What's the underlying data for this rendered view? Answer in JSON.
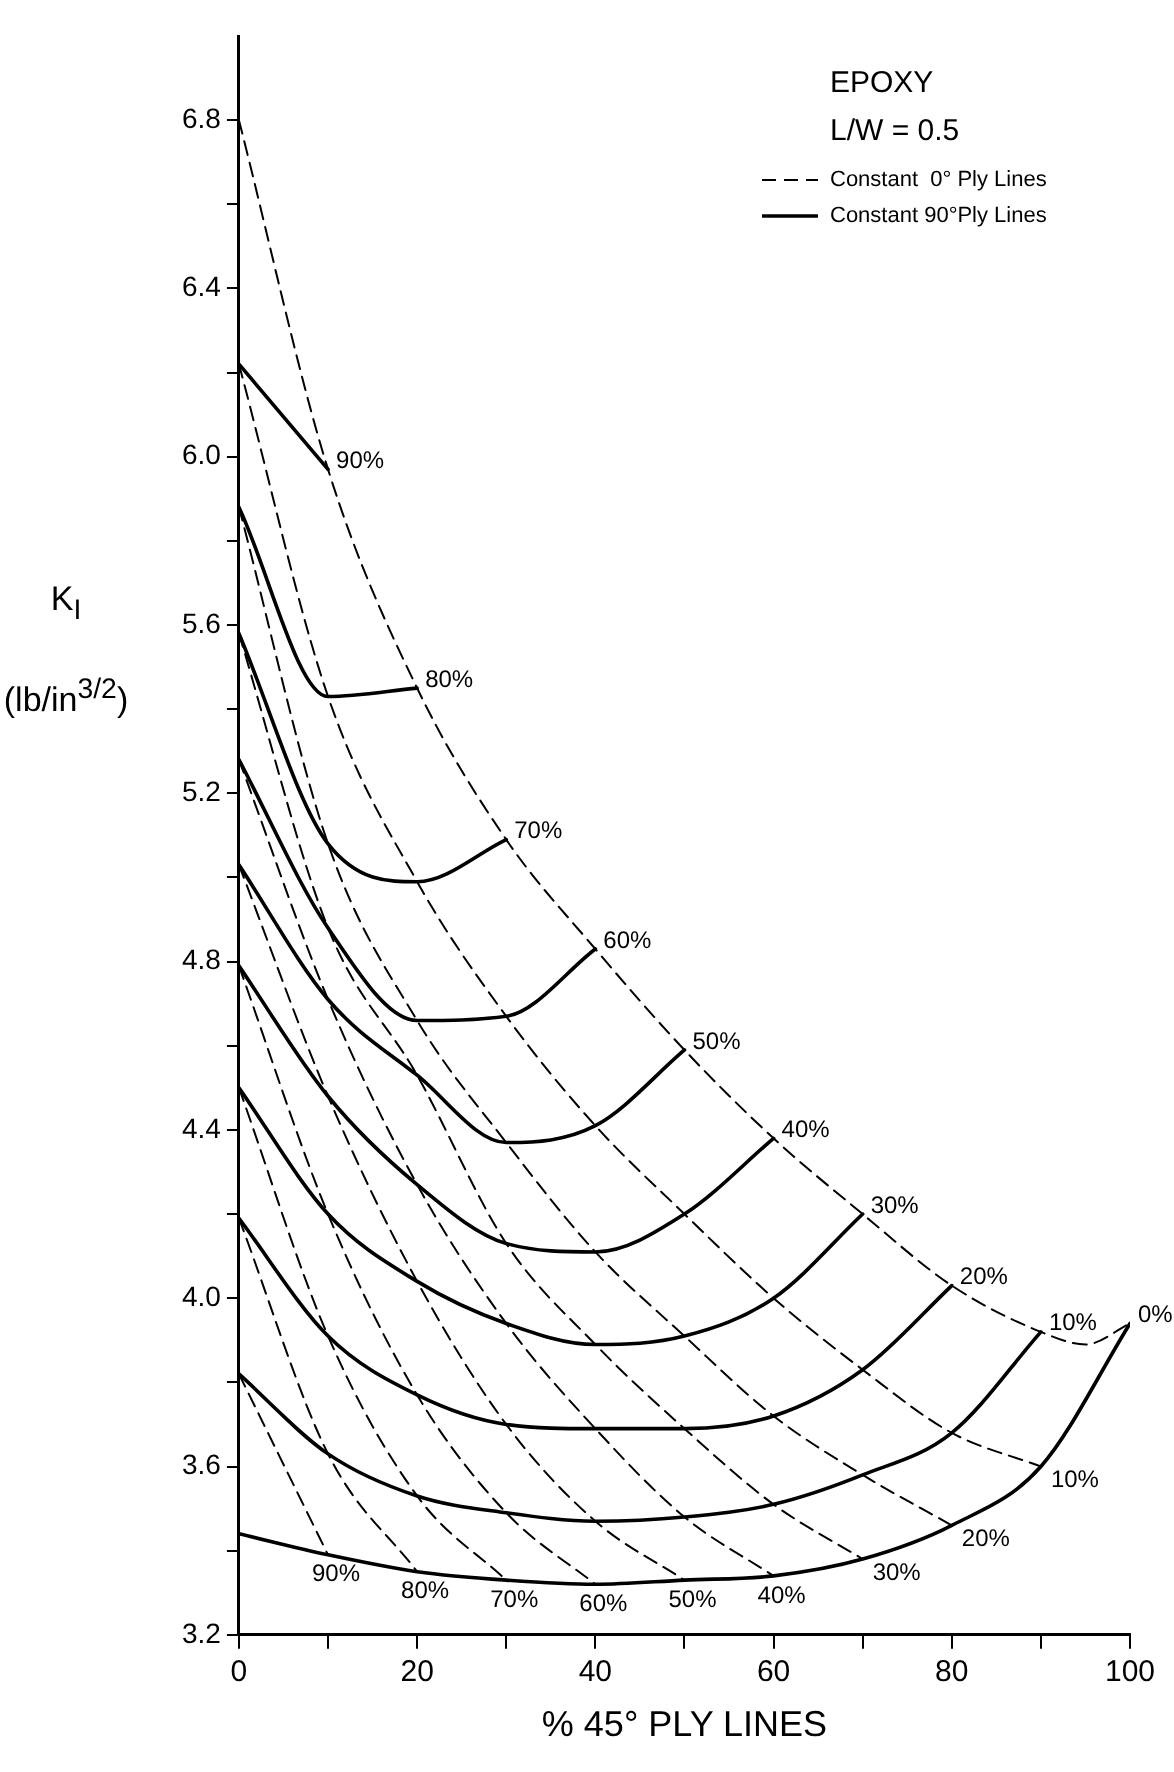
{
  "chart_data": {
    "type": "line",
    "xlabel": "% 45° PLY LINES",
    "ylabel": "K$_{I}$ (lb/in$^{3/2}$)",
    "annotations": [
      "EPOXY",
      "L/W = 0.5",
      "Constant  0° Ply Lines",
      "Constant 90°Ply Lines"
    ],
    "xlim": [
      0,
      100
    ],
    "xticks": [
      0,
      {
        "value": 10,
        "label": null
      },
      20,
      {
        "value": 30,
        "label": null
      },
      40,
      {
        "value": 50,
        "label": null
      },
      60,
      {
        "value": 70,
        "label": null
      },
      80,
      {
        "value": 90,
        "label": null
      },
      100
    ],
    "ylim": [
      3.2,
      7.0
    ],
    "yticks": [
      3.2,
      {
        "value": 3.4,
        "label": null
      },
      3.6,
      {
        "value": 3.8,
        "label": null
      },
      {
        "value": 4.0,
        "label": "4.0"
      },
      {
        "value": 4.2,
        "label": null
      },
      4.4,
      {
        "value": 4.6,
        "label": null
      },
      4.8,
      {
        "value": 5.0,
        "label": null
      },
      5.2,
      {
        "value": 5.4,
        "label": null
      },
      5.6,
      {
        "value": 5.8,
        "label": null
      },
      {
        "value": 6.0,
        "label": "6.0"
      },
      {
        "value": 6.2,
        "label": null
      },
      6.4,
      {
        "value": 6.6,
        "label": null
      },
      6.8
    ],
    "series": [
      {
        "name": "90%",
        "color": "#000000",
        "line_style": "solid",
        "x": [
          0,
          10
        ],
        "values": [
          6.22,
          5.97
        ]
      },
      {
        "name": "80%",
        "color": "#000000",
        "line_style": "solid",
        "x": [
          0,
          10,
          20
        ],
        "values": [
          5.88,
          5.43,
          5.45
        ]
      },
      {
        "name": "70%",
        "color": "#000000",
        "line_style": "solid",
        "x": [
          0,
          10,
          20,
          30
        ],
        "values": [
          5.58,
          5.08,
          4.99,
          5.09
        ]
      },
      {
        "name": "60%",
        "color": "#000000",
        "line_style": "solid",
        "x": [
          0,
          10,
          20,
          30,
          40
        ],
        "values": [
          5.28,
          4.88,
          4.66,
          4.67,
          4.83
        ]
      },
      {
        "name": "50%",
        "color": "#000000",
        "line_style": "solid",
        "x": [
          0,
          10,
          20,
          30,
          40,
          50
        ],
        "values": [
          5.03,
          4.71,
          4.53,
          4.37,
          4.41,
          4.59
        ]
      },
      {
        "name": "40%",
        "color": "#000000",
        "line_style": "solid",
        "x": [
          0,
          10,
          20,
          30,
          40,
          50,
          60
        ],
        "values": [
          4.79,
          4.48,
          4.27,
          4.13,
          4.11,
          4.2,
          4.38
        ]
      },
      {
        "name": "30%",
        "color": "#000000",
        "line_style": "solid",
        "x": [
          0,
          10,
          20,
          30,
          40,
          50,
          60,
          70
        ],
        "values": [
          4.5,
          4.2,
          4.04,
          3.94,
          3.89,
          3.91,
          4.0,
          4.2
        ]
      },
      {
        "name": "20%",
        "color": "#000000",
        "line_style": "solid",
        "x": [
          0,
          10,
          20,
          30,
          40,
          50,
          60,
          70,
          80
        ],
        "values": [
          4.19,
          3.91,
          3.77,
          3.7,
          3.69,
          3.69,
          3.72,
          3.83,
          4.03
        ]
      },
      {
        "name": "10%",
        "color": "#000000",
        "line_style": "solid",
        "x": [
          0,
          10,
          20,
          30,
          40,
          50,
          60,
          70,
          80,
          90
        ],
        "values": [
          3.82,
          3.63,
          3.53,
          3.49,
          3.47,
          3.48,
          3.51,
          3.58,
          3.68,
          3.92
        ]
      },
      {
        "name": "0%",
        "color": "#000000",
        "line_style": "solid",
        "x": [
          0,
          10,
          20,
          30,
          40,
          50,
          60,
          70,
          80,
          90,
          100
        ],
        "values": [
          3.44,
          3.39,
          3.35,
          3.33,
          3.32,
          3.33,
          3.34,
          3.38,
          3.46,
          3.6,
          3.94
        ]
      },
      {
        "color": "#000000",
        "line_style": "dashed",
        "x": [
          0,
          10,
          20,
          30,
          40,
          50,
          60,
          70,
          80,
          90,
          95,
          100
        ],
        "values": [
          6.8,
          5.97,
          5.45,
          5.09,
          4.83,
          4.59,
          4.38,
          4.2,
          4.03,
          3.92,
          3.89,
          3.94
        ]
      },
      {
        "name": "10%",
        "color": "#000000",
        "line_style": "dashed",
        "x": [
          0,
          10,
          20,
          30,
          40,
          50,
          60,
          70,
          80,
          90
        ],
        "values": [
          6.22,
          5.43,
          4.99,
          4.67,
          4.41,
          4.2,
          4.0,
          3.83,
          3.68,
          3.6
        ]
      },
      {
        "name": "20%",
        "color": "#000000",
        "line_style": "dashed",
        "x": [
          0,
          10,
          20,
          30,
          40,
          50,
          60,
          70,
          80
        ],
        "values": [
          5.88,
          5.08,
          4.66,
          4.37,
          4.11,
          3.91,
          3.72,
          3.58,
          3.46
        ]
      },
      {
        "name": "30%",
        "color": "#000000",
        "line_style": "dashed",
        "x": [
          0,
          10,
          20,
          30,
          40,
          50,
          60,
          70
        ],
        "values": [
          5.58,
          4.88,
          4.53,
          4.13,
          3.89,
          3.69,
          3.51,
          3.38
        ]
      },
      {
        "name": "40%",
        "color": "#000000",
        "line_style": "dashed",
        "x": [
          0,
          10,
          20,
          30,
          40,
          50,
          60
        ],
        "values": [
          5.28,
          4.71,
          4.27,
          3.94,
          3.69,
          3.48,
          3.34
        ]
      },
      {
        "name": "50%",
        "color": "#000000",
        "line_style": "dashed",
        "x": [
          0,
          10,
          20,
          30,
          40,
          50
        ],
        "values": [
          5.03,
          4.48,
          4.04,
          3.7,
          3.47,
          3.33
        ]
      },
      {
        "name": "60%",
        "color": "#000000",
        "line_style": "dashed",
        "x": [
          0,
          10,
          20,
          30,
          40
        ],
        "values": [
          4.79,
          4.2,
          3.77,
          3.49,
          3.32
        ]
      },
      {
        "name": "70%",
        "color": "#000000",
        "line_style": "dashed",
        "x": [
          0,
          10,
          20,
          30
        ],
        "values": [
          4.5,
          3.91,
          3.53,
          3.33
        ]
      },
      {
        "name": "80%",
        "color": "#000000",
        "line_style": "dashed",
        "x": [
          0,
          10,
          20
        ],
        "values": [
          4.19,
          3.63,
          3.35
        ]
      },
      {
        "name": "90%",
        "color": "#000000",
        "line_style": "dashed",
        "x": [
          0,
          10
        ],
        "values": [
          3.82,
          3.39
        ]
      }
    ]
  }
}
